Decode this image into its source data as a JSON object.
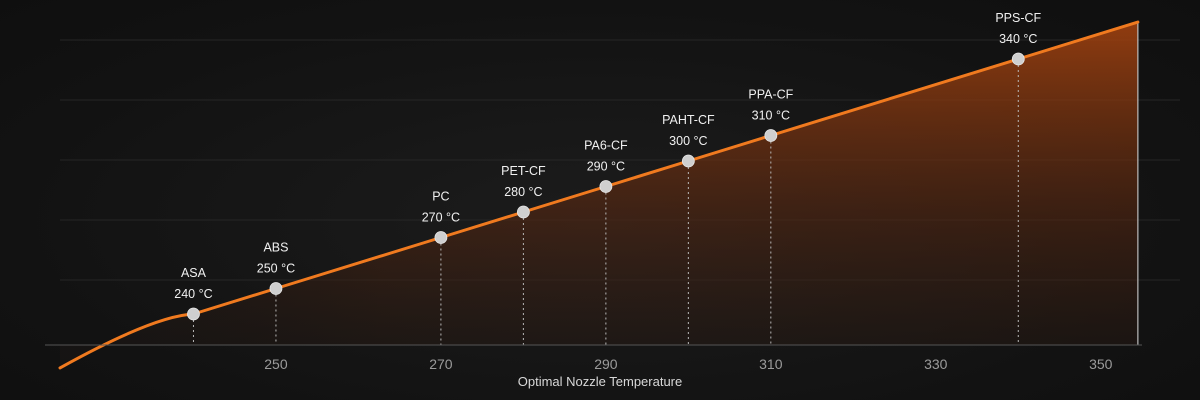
{
  "chart_data": {
    "type": "area",
    "title": "",
    "xlabel": "Optimal Nozzle Temperature",
    "ylabel": "",
    "x_ticks": [
      250,
      270,
      290,
      310,
      330,
      350
    ],
    "xlim": [
      222,
      355
    ],
    "unit": "°C",
    "colors": {
      "line": "#f07a1f",
      "fill": "#b0480f",
      "point": "#cfcfcf",
      "grid": "#262626",
      "axis": "#555555"
    },
    "points": [
      {
        "name": "ASA",
        "value": 240,
        "label": "240 °C"
      },
      {
        "name": "ABS",
        "value": 250,
        "label": "250 °C"
      },
      {
        "name": "PC",
        "value": 270,
        "label": "270 °C"
      },
      {
        "name": "PET-CF",
        "value": 280,
        "label": "280 °C"
      },
      {
        "name": "PA6-CF",
        "value": 290,
        "label": "290 °C"
      },
      {
        "name": "PAHT-CF",
        "value": 300,
        "label": "300 °C"
      },
      {
        "name": "PPA-CF",
        "value": 310,
        "label": "310 °C"
      },
      {
        "name": "PPS-CF",
        "value": 340,
        "label": "340 °C"
      }
    ]
  }
}
